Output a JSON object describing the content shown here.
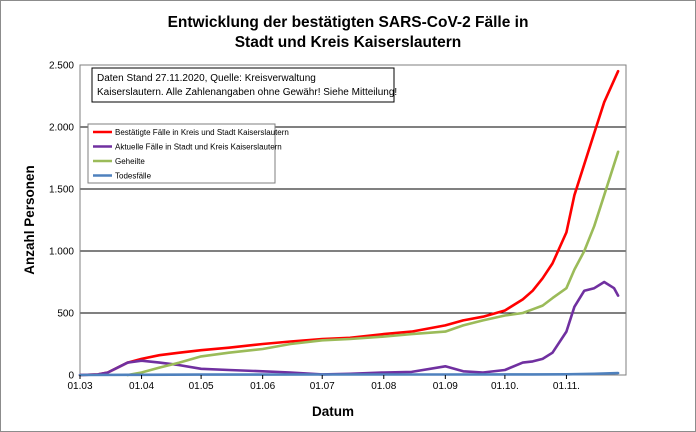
{
  "chart_data": {
    "type": "line",
    "title_lines": [
      "Entwicklung der bestätigten SARS-CoV-2 Fälle in",
      "Stadt und Kreis Kaiserslautern"
    ],
    "xlabel": "Datum",
    "ylabel": "Anzahl Personen",
    "ylim": [
      0,
      2500
    ],
    "yticks": [
      0,
      500,
      1000,
      1500,
      2000,
      2500
    ],
    "ytick_labels": [
      "0",
      "500",
      "1.000",
      "1.500",
      "2.000",
      "2.500"
    ],
    "xlim": [
      "2020-03-01",
      "2020-12-01"
    ],
    "xticks": [
      {
        "date": "2020-03-01",
        "label": "01.03"
      },
      {
        "date": "2020-04-01",
        "label": "01.04"
      },
      {
        "date": "2020-05-01",
        "label": "01.05"
      },
      {
        "date": "2020-06-01",
        "label": "01.06"
      },
      {
        "date": "2020-07-01",
        "label": "01.07"
      },
      {
        "date": "2020-08-01",
        "label": "01.08"
      },
      {
        "date": "2020-09-01",
        "label": "01.09"
      },
      {
        "date": "2020-10-01",
        "label": "01.10."
      },
      {
        "date": "2020-11-01",
        "label": "01.11."
      }
    ],
    "grid": "horizontal",
    "legend_position": "top-left",
    "note_lines": [
      "Daten Stand 27.11.2020, Quelle: Kreisverwaltung",
      "Kaiserslautern. Alle Zahlenangaben ohne Gewähr! Siehe Mitteilung!"
    ],
    "series": [
      {
        "name": "Bestätigte Fälle in Kreis und Stadt Kaiserslautern",
        "color": "#ff0000",
        "points": [
          [
            "2020-03-01",
            0
          ],
          [
            "2020-03-10",
            5
          ],
          [
            "2020-03-15",
            20
          ],
          [
            "2020-03-20",
            60
          ],
          [
            "2020-03-25",
            100
          ],
          [
            "2020-04-01",
            130
          ],
          [
            "2020-04-10",
            160
          ],
          [
            "2020-04-20",
            180
          ],
          [
            "2020-05-01",
            200
          ],
          [
            "2020-05-15",
            220
          ],
          [
            "2020-06-01",
            250
          ],
          [
            "2020-06-15",
            270
          ],
          [
            "2020-07-01",
            290
          ],
          [
            "2020-07-15",
            300
          ],
          [
            "2020-08-01",
            330
          ],
          [
            "2020-08-15",
            350
          ],
          [
            "2020-09-01",
            400
          ],
          [
            "2020-09-10",
            440
          ],
          [
            "2020-09-20",
            470
          ],
          [
            "2020-10-01",
            520
          ],
          [
            "2020-10-10",
            610
          ],
          [
            "2020-10-15",
            680
          ],
          [
            "2020-10-20",
            780
          ],
          [
            "2020-10-25",
            900
          ],
          [
            "2020-11-01",
            1150
          ],
          [
            "2020-11-05",
            1450
          ],
          [
            "2020-11-10",
            1700
          ],
          [
            "2020-11-15",
            1950
          ],
          [
            "2020-11-20",
            2200
          ],
          [
            "2020-11-27",
            2450
          ]
        ]
      },
      {
        "name": "Aktuelle Fälle in Stadt und Kreis Kaiserslautern",
        "color": "#7030a0",
        "points": [
          [
            "2020-03-01",
            0
          ],
          [
            "2020-03-10",
            5
          ],
          [
            "2020-03-15",
            20
          ],
          [
            "2020-03-20",
            60
          ],
          [
            "2020-03-25",
            100
          ],
          [
            "2020-04-01",
            115
          ],
          [
            "2020-04-10",
            100
          ],
          [
            "2020-04-20",
            80
          ],
          [
            "2020-05-01",
            50
          ],
          [
            "2020-05-15",
            40
          ],
          [
            "2020-06-01",
            30
          ],
          [
            "2020-06-15",
            20
          ],
          [
            "2020-07-01",
            5
          ],
          [
            "2020-07-15",
            10
          ],
          [
            "2020-08-01",
            20
          ],
          [
            "2020-08-15",
            25
          ],
          [
            "2020-09-01",
            70
          ],
          [
            "2020-09-10",
            30
          ],
          [
            "2020-09-20",
            20
          ],
          [
            "2020-10-01",
            40
          ],
          [
            "2020-10-10",
            100
          ],
          [
            "2020-10-15",
            110
          ],
          [
            "2020-10-20",
            130
          ],
          [
            "2020-10-25",
            180
          ],
          [
            "2020-11-01",
            350
          ],
          [
            "2020-11-05",
            550
          ],
          [
            "2020-11-10",
            680
          ],
          [
            "2020-11-15",
            700
          ],
          [
            "2020-11-20",
            750
          ],
          [
            "2020-11-25",
            700
          ],
          [
            "2020-11-27",
            640
          ]
        ]
      },
      {
        "name": "Geheilte",
        "color": "#9bbb59",
        "points": [
          [
            "2020-03-25",
            0
          ],
          [
            "2020-04-01",
            20
          ],
          [
            "2020-04-10",
            60
          ],
          [
            "2020-04-20",
            100
          ],
          [
            "2020-05-01",
            150
          ],
          [
            "2020-05-15",
            180
          ],
          [
            "2020-06-01",
            210
          ],
          [
            "2020-06-15",
            250
          ],
          [
            "2020-07-01",
            280
          ],
          [
            "2020-07-15",
            290
          ],
          [
            "2020-08-01",
            310
          ],
          [
            "2020-08-15",
            330
          ],
          [
            "2020-09-01",
            350
          ],
          [
            "2020-09-10",
            400
          ],
          [
            "2020-09-20",
            440
          ],
          [
            "2020-10-01",
            480
          ],
          [
            "2020-10-10",
            500
          ],
          [
            "2020-10-15",
            530
          ],
          [
            "2020-10-20",
            560
          ],
          [
            "2020-10-25",
            620
          ],
          [
            "2020-11-01",
            700
          ],
          [
            "2020-11-05",
            850
          ],
          [
            "2020-11-10",
            1000
          ],
          [
            "2020-11-15",
            1200
          ],
          [
            "2020-11-20",
            1450
          ],
          [
            "2020-11-27",
            1800
          ]
        ]
      },
      {
        "name": "Todesfälle",
        "color": "#4f81bd",
        "points": [
          [
            "2020-03-01",
            0
          ],
          [
            "2020-04-01",
            2
          ],
          [
            "2020-05-01",
            3
          ],
          [
            "2020-06-01",
            3
          ],
          [
            "2020-07-01",
            4
          ],
          [
            "2020-08-01",
            4
          ],
          [
            "2020-09-01",
            4
          ],
          [
            "2020-10-01",
            5
          ],
          [
            "2020-10-15",
            5
          ],
          [
            "2020-11-01",
            6
          ],
          [
            "2020-11-15",
            10
          ],
          [
            "2020-11-27",
            15
          ]
        ]
      }
    ]
  }
}
